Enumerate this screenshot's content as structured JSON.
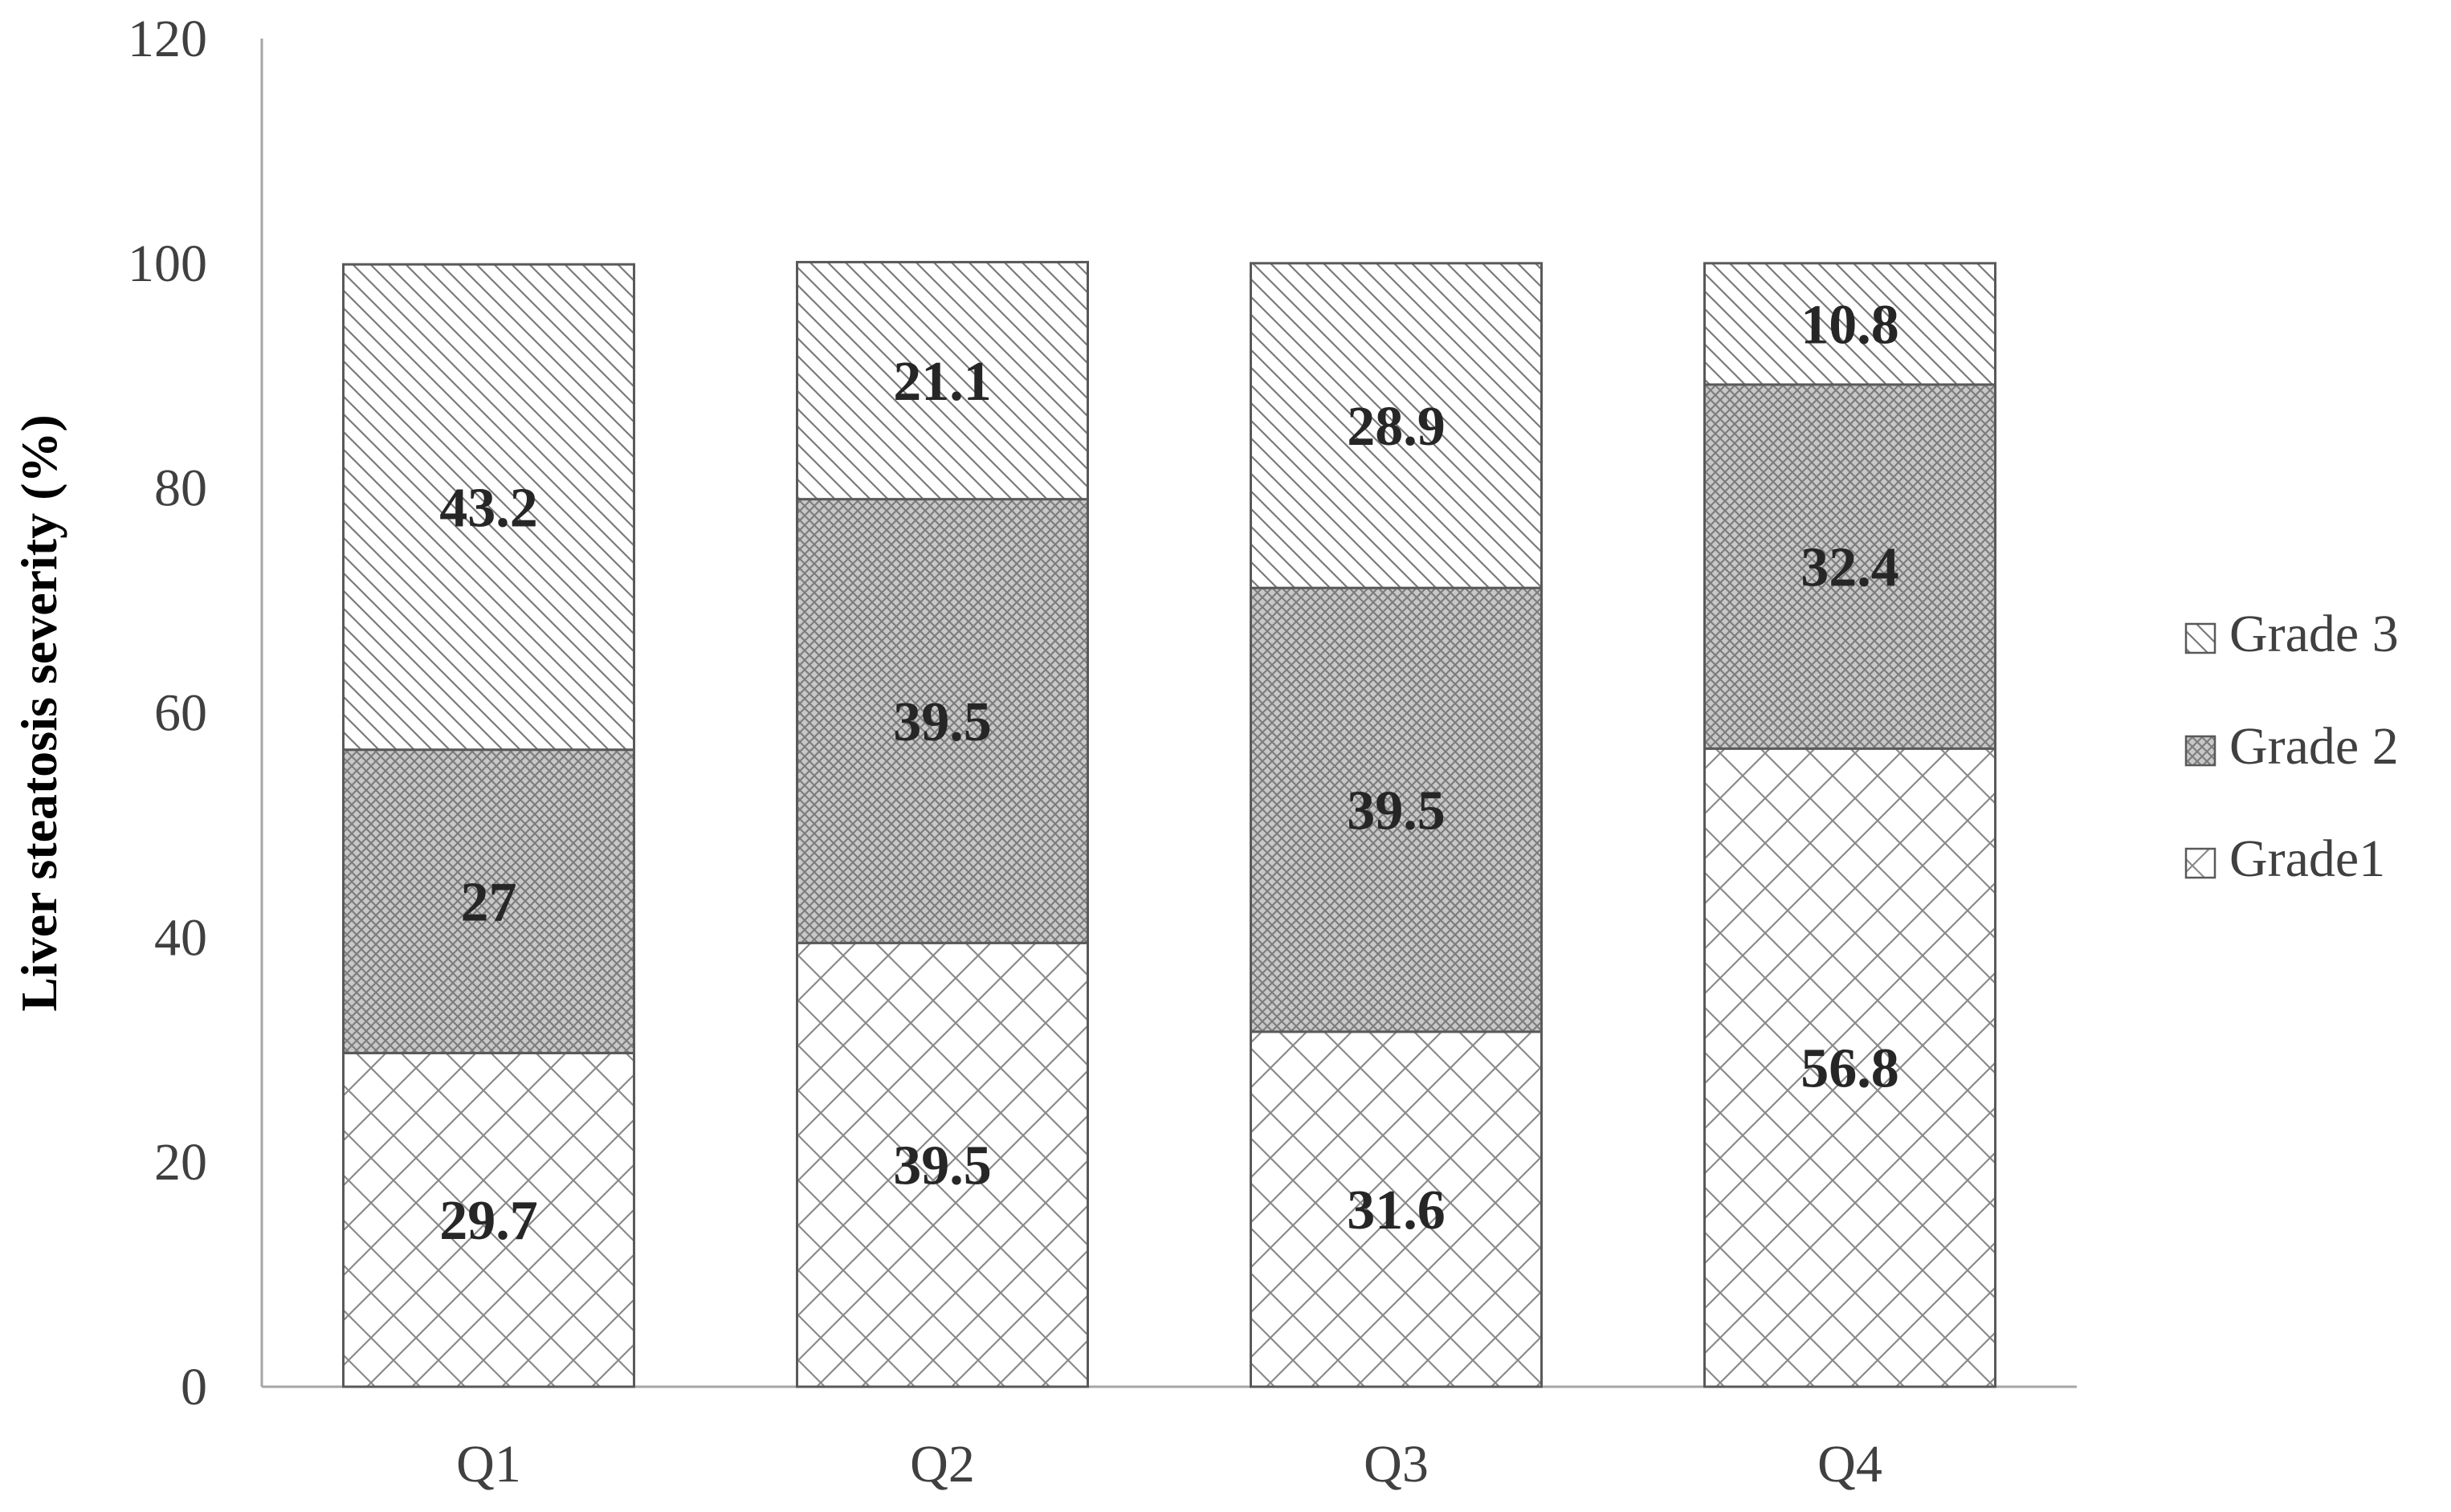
{
  "chart_data": {
    "type": "bar",
    "stacked": true,
    "categories": [
      "Q1",
      "Q2",
      "Q3",
      "Q4"
    ],
    "series": [
      {
        "name": "Grade1",
        "values": [
          29.7,
          39.5,
          31.6,
          56.8
        ],
        "pattern": "brick-diagonal"
      },
      {
        "name": "Grade 2",
        "values": [
          27,
          39.5,
          39.5,
          32.4
        ],
        "pattern": "dense-crosshatch"
      },
      {
        "name": "Grade 3",
        "values": [
          43.2,
          21.1,
          28.9,
          10.8
        ],
        "pattern": "diagonal-hatch"
      }
    ],
    "data_labels": [
      [
        "29.7",
        "39.5",
        "31.6",
        "56.8"
      ],
      [
        "27",
        "39.5",
        "39.5",
        "32.4"
      ],
      [
        "43.2",
        "21.1",
        "28.9",
        "10.8"
      ]
    ],
    "title": "",
    "xlabel": "",
    "ylabel": "Liver steatosis severity (%)",
    "ylim": [
      0,
      120
    ],
    "yticks": [
      0,
      20,
      40,
      60,
      80,
      100,
      120
    ],
    "grid": false,
    "legend": {
      "position": "right",
      "order": [
        "Grade 3",
        "Grade 2",
        "Grade1"
      ]
    },
    "colors": {
      "stroke": "#595959",
      "hatch": "#808080",
      "axis": "#a6a6a6",
      "grade2_fill": "#d0d0d0"
    }
  }
}
